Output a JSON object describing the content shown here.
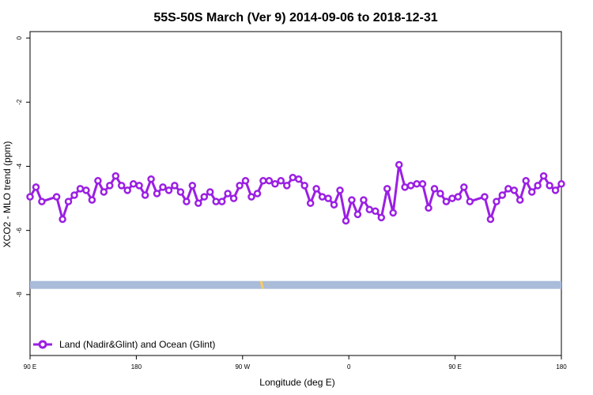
{
  "chart_data": {
    "type": "line",
    "title": "55S-50S March (Ver 9)   2014-09-06 to 2018-12-31",
    "xlabel": "Longitude (deg E)",
    "ylabel": "XCO2 - MLO trend (ppm)",
    "xlim": [
      90,
      450
    ],
    "ylim": [
      -9.9,
      0.2
    ],
    "x_ticks": [
      {
        "value": 90,
        "label": "90 E"
      },
      {
        "value": 162,
        "label": "180"
      },
      {
        "value": 234,
        "label": "90 W"
      },
      {
        "value": 306,
        "label": "0"
      },
      {
        "value": 378,
        "label": "90 E"
      },
      {
        "value": 450,
        "label": "180"
      }
    ],
    "y_ticks": [
      {
        "value": 0,
        "label": "0"
      },
      {
        "value": -2,
        "label": "-2"
      },
      {
        "value": -4,
        "label": "-4"
      },
      {
        "value": -6,
        "label": "-6"
      },
      {
        "value": -8,
        "label": "-8"
      }
    ],
    "grid": false,
    "legend_position": "bottom-left",
    "map_band": {
      "y_center": -7.7,
      "color": "#a9bcd9",
      "land_color": "#f5c96a"
    },
    "series": [
      {
        "name": "Land (Nadir&Glint) and Ocean (Glint)",
        "color": "#9b1fe3",
        "x": [
          90,
          94,
          98,
          108,
          112,
          116,
          120,
          124,
          128,
          132,
          136,
          140,
          144,
          148,
          152,
          156,
          160,
          164,
          168,
          172,
          176,
          180,
          184,
          188,
          192,
          196,
          200,
          204,
          208,
          212,
          216,
          220,
          224,
          228,
          232,
          236,
          240,
          244,
          248,
          252,
          256,
          260,
          264,
          268,
          272,
          276,
          280,
          284,
          288,
          292,
          296,
          300,
          304,
          308,
          312,
          316,
          320,
          324,
          328,
          332,
          336,
          340,
          344,
          348,
          352,
          356,
          360,
          364,
          368,
          372,
          376,
          380,
          384,
          388,
          398,
          402,
          406,
          410,
          414,
          418,
          422,
          426,
          430,
          434,
          438,
          442,
          446,
          450
        ],
        "y": [
          -4.95,
          -4.65,
          -5.1,
          -4.95,
          -5.65,
          -5.1,
          -4.9,
          -4.7,
          -4.75,
          -5.05,
          -4.45,
          -4.8,
          -4.6,
          -4.3,
          -4.6,
          -4.75,
          -4.55,
          -4.6,
          -4.9,
          -4.4,
          -4.85,
          -4.65,
          -4.75,
          -4.6,
          -4.8,
          -5.1,
          -4.6,
          -5.15,
          -4.95,
          -4.8,
          -5.1,
          -5.1,
          -4.85,
          -5.0,
          -4.6,
          -4.45,
          -4.95,
          -4.85,
          -4.45,
          -4.45,
          -4.55,
          -4.45,
          -4.6,
          -4.35,
          -4.4,
          -4.6,
          -5.15,
          -4.7,
          -4.95,
          -5.0,
          -5.2,
          -4.75,
          -5.7,
          -5.05,
          -5.5,
          -5.05,
          -5.35,
          -5.4,
          -5.6,
          -4.7,
          -5.45,
          -3.95,
          -4.65,
          -4.6,
          -4.55,
          -4.55,
          -5.3,
          -4.7,
          -4.85,
          -5.1,
          -5.0,
          -4.95,
          -4.65,
          -5.1,
          -4.95,
          -5.65,
          -5.1,
          -4.9,
          -4.7,
          -4.75,
          -5.05,
          -4.45,
          -4.8,
          -4.6,
          -4.3,
          -4.6,
          -4.75,
          -4.55
        ]
      }
    ]
  }
}
